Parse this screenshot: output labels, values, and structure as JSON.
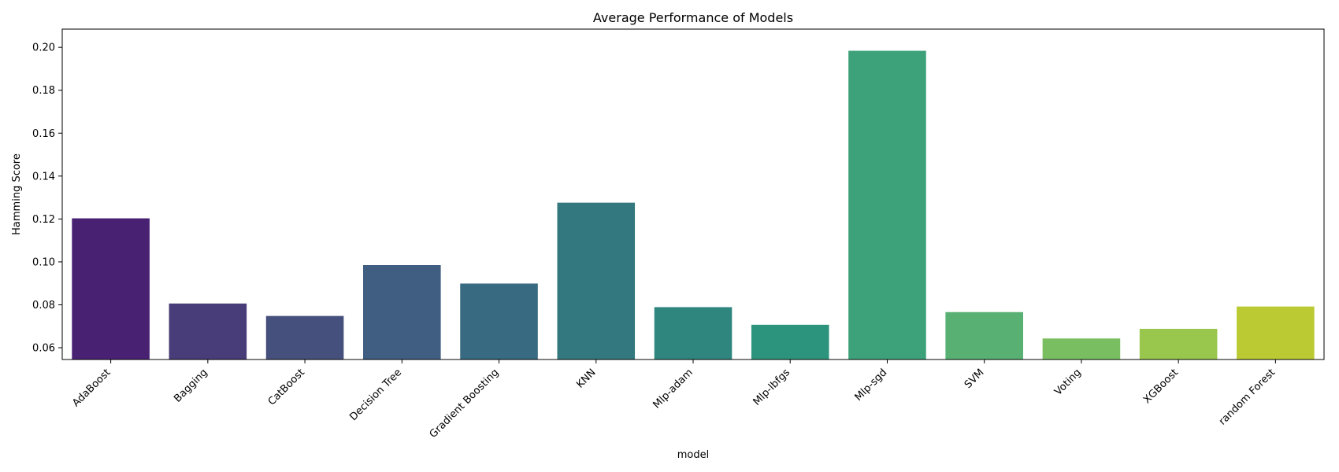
{
  "chart_data": {
    "type": "bar",
    "title": "Average Performance of Models",
    "xlabel": "model",
    "ylabel": "Hamming Score",
    "categories": [
      "AdaBoost",
      "Bagging",
      "CatBoost",
      "Decision Tree",
      "Gradient Boosting",
      "KNN",
      "Mlp-adam",
      "Mlp-lbfgs",
      "Mlp-sgd",
      "SVM",
      "Voting",
      "XGBoost",
      "random Forest"
    ],
    "values": [
      0.1203,
      0.0806,
      0.0748,
      0.0985,
      0.0899,
      0.1276,
      0.0789,
      0.0707,
      0.1984,
      0.0766,
      0.0643,
      0.0688,
      0.0792
    ],
    "colors": [
      "#482173",
      "#483D78",
      "#46507C",
      "#3F5E82",
      "#386A81",
      "#34787F",
      "#2E867E",
      "#2C937C",
      "#3DA27A",
      "#58B172",
      "#79BF62",
      "#99C74D",
      "#BBCA32"
    ],
    "ylim": [
      0.0545,
      0.2085
    ],
    "yticks": [
      0.06,
      0.08,
      0.1,
      0.12,
      0.14,
      0.16,
      0.18,
      0.2
    ],
    "ytick_labels": [
      "0.06",
      "0.08",
      "0.10",
      "0.12",
      "0.14",
      "0.16",
      "0.18",
      "0.20"
    ],
    "grid": false,
    "legend": "none"
  }
}
